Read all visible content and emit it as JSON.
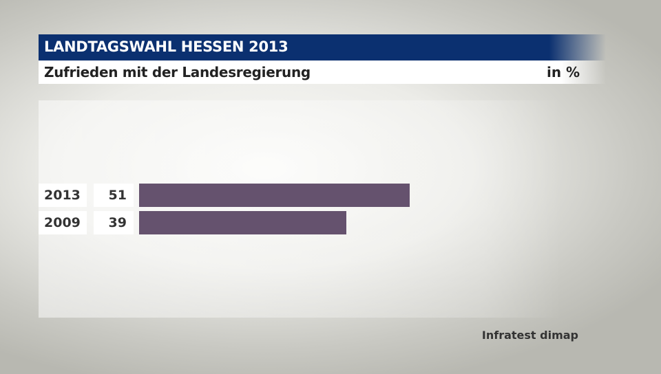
{
  "chart_data": {
    "type": "bar",
    "orientation": "horizontal",
    "title": "LANDTAGSWAHL HESSEN 2013",
    "subtitle": "Zufrieden mit der Landesregierung",
    "unit": "in %",
    "categories": [
      "2013",
      "2009"
    ],
    "values": [
      51,
      39
    ],
    "bar_color": "#65526e",
    "source": "Infratest dimap"
  }
}
